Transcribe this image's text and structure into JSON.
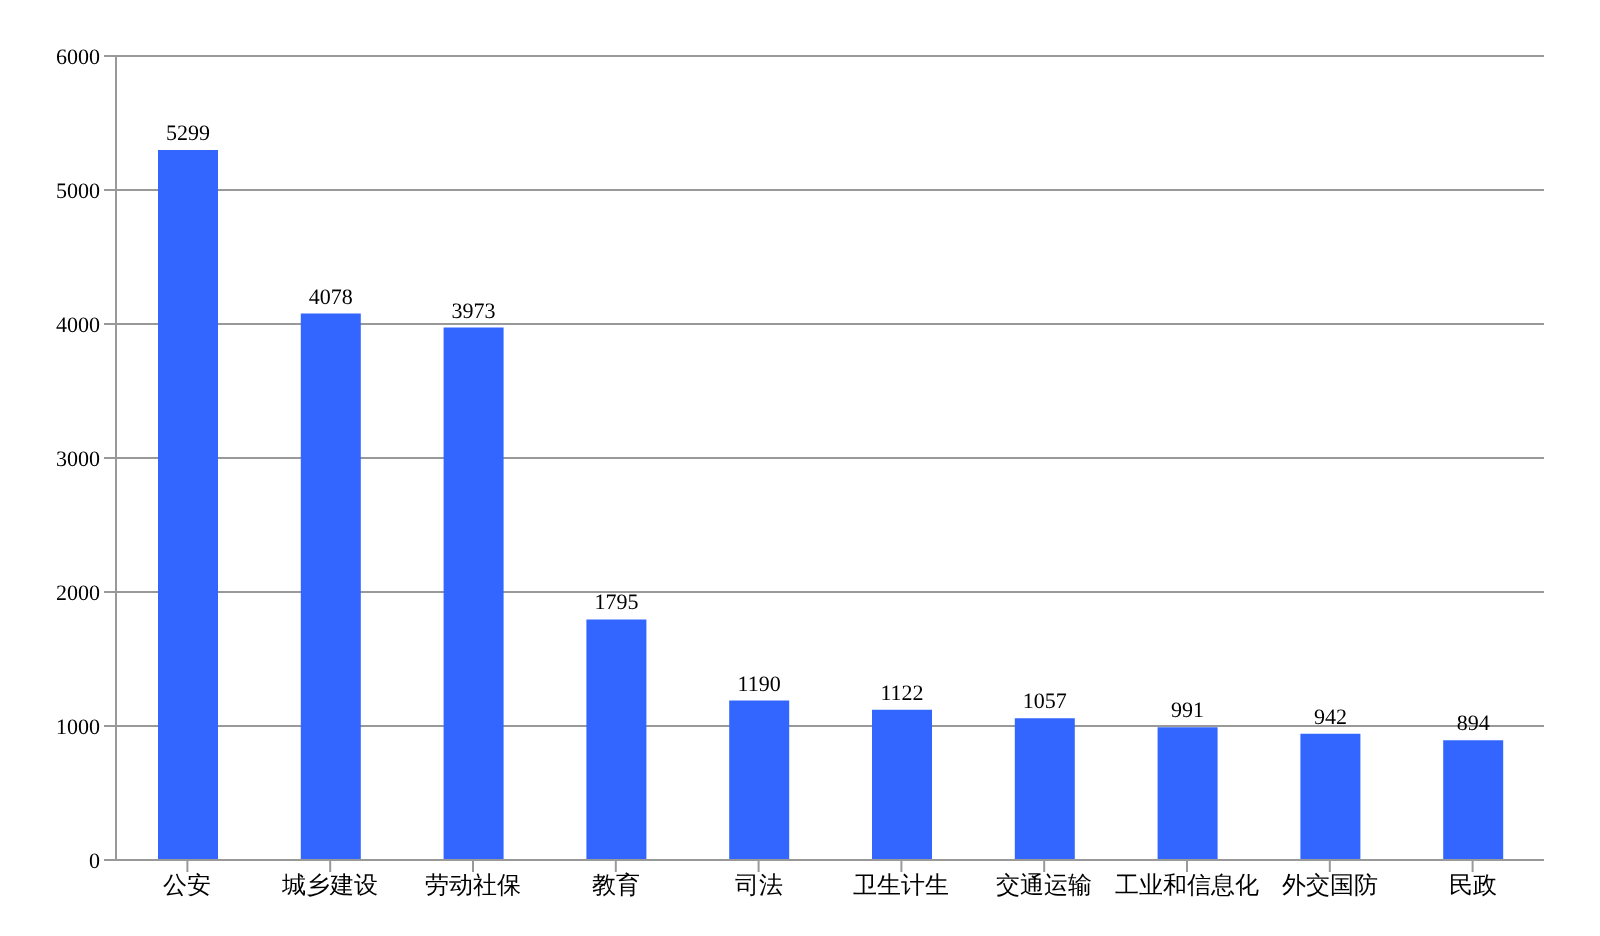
{
  "chart_data": {
    "type": "bar",
    "categories": [
      "公安",
      "城乡建设",
      "劳动社保",
      "教育",
      "司法",
      "卫生计生",
      "交通运输",
      "工业和信息化",
      "外交国防",
      "民政"
    ],
    "values": [
      5299,
      4078,
      3973,
      1795,
      1190,
      1122,
      1057,
      991,
      942,
      894
    ],
    "color": "#3366ff",
    "ylim": [
      0,
      6000
    ],
    "yticks": [
      0,
      1000,
      2000,
      3000,
      4000,
      5000,
      6000
    ],
    "grid": "y",
    "data_labels": true
  }
}
